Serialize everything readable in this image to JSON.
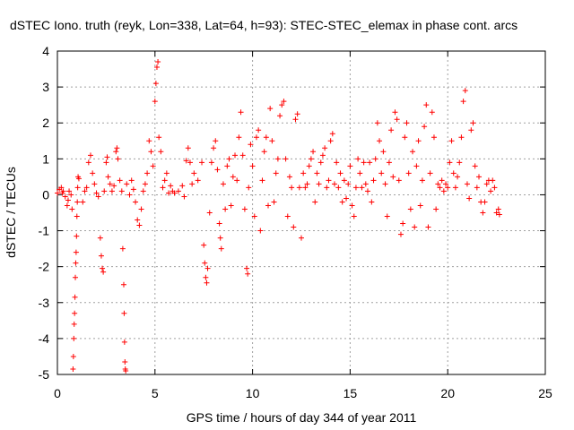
{
  "chart_data": {
    "type": "scatter",
    "title": "dSTEC Iono. truth (reyk, Lon=338, Lat=64, h=93): STEC-STEC_elemax in phase cont. arcs",
    "xlabel": "GPS time / hours of day 344 of year 2011",
    "ylabel": "dSTEC  / TECUs",
    "xlim": [
      0,
      25
    ],
    "ylim": [
      -5,
      4
    ],
    "xticks": [
      0,
      5,
      10,
      15,
      20,
      25
    ],
    "xtick_labels": [
      "0",
      "5",
      "10",
      "15",
      "20",
      "25"
    ],
    "yticks": [
      -5,
      -4,
      -3,
      -2,
      -1,
      0,
      1,
      2,
      3,
      4
    ],
    "ytick_labels": [
      "-5",
      "-4",
      "-3",
      "-2",
      "-1",
      "0",
      "1",
      "2",
      "3",
      "4"
    ],
    "grid": true,
    "legend": "none",
    "marker": "+",
    "series": [
      {
        "name": "STEC-STEC_elemax",
        "color": "#ff0000",
        "points": [
          [
            0.0,
            0.05
          ],
          [
            0.1,
            0.15
          ],
          [
            0.2,
            0.2
          ],
          [
            0.25,
            0.05
          ],
          [
            0.3,
            0.1
          ],
          [
            0.4,
            -0.05
          ],
          [
            0.5,
            -0.3
          ],
          [
            0.55,
            -0.15
          ],
          [
            0.6,
            0.1
          ],
          [
            0.7,
            0.0
          ],
          [
            0.75,
            -0.4
          ],
          [
            0.8,
            -4.85
          ],
          [
            0.82,
            -4.5
          ],
          [
            0.84,
            -4.0
          ],
          [
            0.86,
            -3.6
          ],
          [
            0.88,
            -3.3
          ],
          [
            0.9,
            -2.85
          ],
          [
            0.92,
            -2.3
          ],
          [
            0.94,
            -1.9
          ],
          [
            0.96,
            -1.6
          ],
          [
            0.98,
            -1.15
          ],
          [
            1.0,
            -0.6
          ],
          [
            1.02,
            -0.2
          ],
          [
            1.04,
            0.2
          ],
          [
            1.06,
            0.5
          ],
          [
            1.1,
            0.45
          ],
          [
            1.3,
            -0.2
          ],
          [
            1.4,
            0.1
          ],
          [
            1.5,
            0.2
          ],
          [
            1.6,
            0.9
          ],
          [
            1.7,
            1.1
          ],
          [
            1.8,
            0.6
          ],
          [
            1.9,
            0.3
          ],
          [
            2.0,
            0.05
          ],
          [
            2.1,
            -0.05
          ],
          [
            2.2,
            -1.2
          ],
          [
            2.25,
            -1.7
          ],
          [
            2.3,
            -2.05
          ],
          [
            2.35,
            -2.15
          ],
          [
            2.4,
            0.1
          ],
          [
            2.5,
            0.9
          ],
          [
            2.55,
            1.05
          ],
          [
            2.6,
            0.5
          ],
          [
            2.7,
            0.3
          ],
          [
            2.8,
            0.1
          ],
          [
            2.9,
            0.25
          ],
          [
            3.0,
            1.2
          ],
          [
            3.05,
            1.3
          ],
          [
            3.1,
            1.0
          ],
          [
            3.2,
            0.4
          ],
          [
            3.3,
            0.1
          ],
          [
            3.35,
            -1.5
          ],
          [
            3.4,
            -2.5
          ],
          [
            3.42,
            -3.3
          ],
          [
            3.44,
            -4.1
          ],
          [
            3.46,
            -4.65
          ],
          [
            3.48,
            -4.85
          ],
          [
            3.5,
            -4.9
          ],
          [
            3.55,
            0.3
          ],
          [
            3.7,
            0.0
          ],
          [
            3.8,
            0.4
          ],
          [
            3.9,
            0.15
          ],
          [
            4.0,
            -0.2
          ],
          [
            4.1,
            -0.7
          ],
          [
            4.2,
            -0.85
          ],
          [
            4.3,
            -0.4
          ],
          [
            4.4,
            0.1
          ],
          [
            4.5,
            0.3
          ],
          [
            4.6,
            0.6
          ],
          [
            4.7,
            1.5
          ],
          [
            4.8,
            1.2
          ],
          [
            4.9,
            0.8
          ],
          [
            5.0,
            2.6
          ],
          [
            5.05,
            3.1
          ],
          [
            5.1,
            3.55
          ],
          [
            5.15,
            3.7
          ],
          [
            5.2,
            1.6
          ],
          [
            5.3,
            1.2
          ],
          [
            5.4,
            0.2
          ],
          [
            5.5,
            0.4
          ],
          [
            5.6,
            0.6
          ],
          [
            5.7,
            0.05
          ],
          [
            5.8,
            0.25
          ],
          [
            5.9,
            0.1
          ],
          [
            6.0,
            0.05
          ],
          [
            6.2,
            0.1
          ],
          [
            6.4,
            0.25
          ],
          [
            6.5,
            -0.05
          ],
          [
            6.6,
            0.95
          ],
          [
            6.7,
            1.3
          ],
          [
            6.8,
            0.9
          ],
          [
            6.9,
            0.3
          ],
          [
            7.0,
            0.6
          ],
          [
            7.2,
            0.4
          ],
          [
            7.4,
            0.9
          ],
          [
            7.5,
            -1.4
          ],
          [
            7.55,
            -1.9
          ],
          [
            7.6,
            -2.3
          ],
          [
            7.65,
            -2.45
          ],
          [
            7.7,
            -2.05
          ],
          [
            7.8,
            -0.5
          ],
          [
            7.9,
            0.9
          ],
          [
            8.0,
            1.3
          ],
          [
            8.1,
            1.5
          ],
          [
            8.2,
            0.7
          ],
          [
            8.3,
            -0.8
          ],
          [
            8.35,
            -1.2
          ],
          [
            8.4,
            -1.5
          ],
          [
            8.5,
            0.3
          ],
          [
            8.6,
            -0.4
          ],
          [
            8.7,
            0.8
          ],
          [
            8.8,
            1.0
          ],
          [
            8.9,
            -0.3
          ],
          [
            9.0,
            0.5
          ],
          [
            9.1,
            1.1
          ],
          [
            9.2,
            0.4
          ],
          [
            9.3,
            1.6
          ],
          [
            9.4,
            2.3
          ],
          [
            9.5,
            1.1
          ],
          [
            9.6,
            -0.4
          ],
          [
            9.7,
            -2.05
          ],
          [
            9.75,
            -2.2
          ],
          [
            9.8,
            0.2
          ],
          [
            9.9,
            1.4
          ],
          [
            10.0,
            0.8
          ],
          [
            10.1,
            -0.6
          ],
          [
            10.2,
            1.6
          ],
          [
            10.3,
            1.8
          ],
          [
            10.4,
            -1.0
          ],
          [
            10.5,
            0.4
          ],
          [
            10.6,
            1.2
          ],
          [
            10.7,
            1.6
          ],
          [
            10.8,
            -0.3
          ],
          [
            10.9,
            2.4
          ],
          [
            11.0,
            1.5
          ],
          [
            11.1,
            -0.2
          ],
          [
            11.2,
            0.6
          ],
          [
            11.3,
            1.0
          ],
          [
            11.4,
            2.2
          ],
          [
            11.5,
            2.5
          ],
          [
            11.6,
            2.6
          ],
          [
            11.7,
            1.0
          ],
          [
            11.8,
            -0.6
          ],
          [
            11.9,
            0.5
          ],
          [
            12.0,
            0.2
          ],
          [
            12.1,
            -0.9
          ],
          [
            12.2,
            2.1
          ],
          [
            12.3,
            2.25
          ],
          [
            12.4,
            0.2
          ],
          [
            12.5,
            -1.2
          ],
          [
            12.6,
            0.6
          ],
          [
            12.7,
            0.2
          ],
          [
            12.8,
            0.3
          ],
          [
            12.9,
            0.8
          ],
          [
            13.0,
            1.0
          ],
          [
            13.1,
            1.2
          ],
          [
            13.2,
            -0.2
          ],
          [
            13.3,
            0.6
          ],
          [
            13.4,
            0.3
          ],
          [
            13.5,
            0.9
          ],
          [
            13.6,
            1.1
          ],
          [
            13.7,
            1.3
          ],
          [
            13.8,
            0.2
          ],
          [
            13.9,
            0.4
          ],
          [
            14.0,
            1.5
          ],
          [
            14.1,
            1.7
          ],
          [
            14.2,
            0.3
          ],
          [
            14.3,
            0.9
          ],
          [
            14.4,
            0.2
          ],
          [
            14.5,
            0.6
          ],
          [
            14.6,
            -0.2
          ],
          [
            14.7,
            0.4
          ],
          [
            14.8,
            -0.1
          ],
          [
            14.9,
            0.3
          ],
          [
            15.0,
            0.8
          ],
          [
            15.1,
            -0.3
          ],
          [
            15.2,
            -0.6
          ],
          [
            15.3,
            0.2
          ],
          [
            15.4,
            1.0
          ],
          [
            15.5,
            0.6
          ],
          [
            15.6,
            0.2
          ],
          [
            15.7,
            0.9
          ],
          [
            15.8,
            0.3
          ],
          [
            15.9,
            0.1
          ],
          [
            16.0,
            0.9
          ],
          [
            16.1,
            -0.2
          ],
          [
            16.2,
            0.4
          ],
          [
            16.3,
            1.0
          ],
          [
            16.4,
            2.0
          ],
          [
            16.5,
            1.5
          ],
          [
            16.6,
            0.6
          ],
          [
            16.7,
            1.2
          ],
          [
            16.8,
            0.3
          ],
          [
            16.9,
            -0.6
          ],
          [
            17.0,
            0.9
          ],
          [
            17.1,
            1.8
          ],
          [
            17.2,
            0.5
          ],
          [
            17.3,
            2.3
          ],
          [
            17.4,
            2.1
          ],
          [
            17.5,
            0.4
          ],
          [
            17.6,
            -1.1
          ],
          [
            17.7,
            -0.8
          ],
          [
            17.8,
            1.6
          ],
          [
            17.9,
            2.0
          ],
          [
            18.0,
            0.6
          ],
          [
            18.1,
            -0.4
          ],
          [
            18.2,
            1.2
          ],
          [
            18.3,
            -0.9
          ],
          [
            18.4,
            0.8
          ],
          [
            18.5,
            1.5
          ],
          [
            18.6,
            -0.3
          ],
          [
            18.7,
            0.4
          ],
          [
            18.8,
            1.9
          ],
          [
            18.9,
            2.5
          ],
          [
            19.0,
            -0.9
          ],
          [
            19.1,
            0.6
          ],
          [
            19.2,
            2.3
          ],
          [
            19.3,
            1.6
          ],
          [
            19.4,
            -0.4
          ],
          [
            19.5,
            0.3
          ],
          [
            19.6,
            0.2
          ],
          [
            19.7,
            0.4
          ],
          [
            19.8,
            0.1
          ],
          [
            19.9,
            0.3
          ],
          [
            20.0,
            0.2
          ],
          [
            20.1,
            0.9
          ],
          [
            20.2,
            1.5
          ],
          [
            20.3,
            0.6
          ],
          [
            20.4,
            0.2
          ],
          [
            20.5,
            0.5
          ],
          [
            20.6,
            0.9
          ],
          [
            20.7,
            1.6
          ],
          [
            20.8,
            2.6
          ],
          [
            20.9,
            2.9
          ],
          [
            21.0,
            0.3
          ],
          [
            21.1,
            -0.1
          ],
          [
            21.2,
            1.8
          ],
          [
            21.3,
            2.0
          ],
          [
            21.4,
            0.8
          ],
          [
            21.5,
            0.2
          ],
          [
            21.6,
            0.5
          ],
          [
            21.7,
            -0.2
          ],
          [
            21.8,
            -0.5
          ],
          [
            21.9,
            -0.2
          ],
          [
            22.0,
            0.3
          ],
          [
            22.1,
            0.4
          ],
          [
            22.2,
            0.1
          ],
          [
            22.3,
            0.4
          ],
          [
            22.4,
            0.2
          ],
          [
            22.5,
            -0.5
          ],
          [
            22.6,
            -0.4
          ],
          [
            22.65,
            -0.55
          ]
        ]
      }
    ]
  }
}
